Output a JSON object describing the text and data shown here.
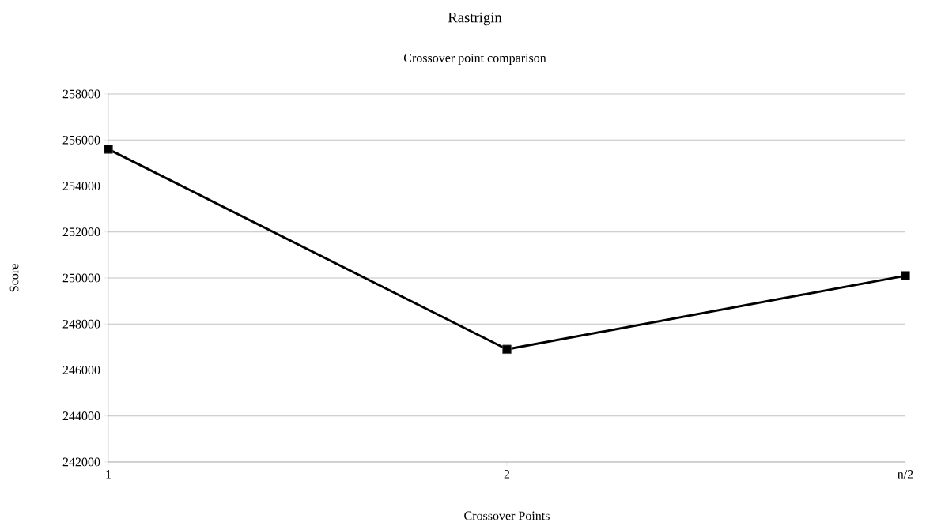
{
  "chart_data": {
    "type": "line",
    "title": "Rastrigin",
    "subtitle": "Crossover point comparison",
    "xlabel": "Crossover Points",
    "ylabel": "Score",
    "categories": [
      "1",
      "2",
      "n/2"
    ],
    "series": [
      {
        "color": "#000000",
        "values": [
          255600,
          246900,
          250100
        ]
      }
    ],
    "ylim": [
      242000,
      258000
    ],
    "yticks": [
      242000,
      244000,
      246000,
      248000,
      250000,
      252000,
      254000,
      256000,
      258000
    ],
    "grid": "y",
    "marker": "square",
    "line_style": "solid"
  }
}
